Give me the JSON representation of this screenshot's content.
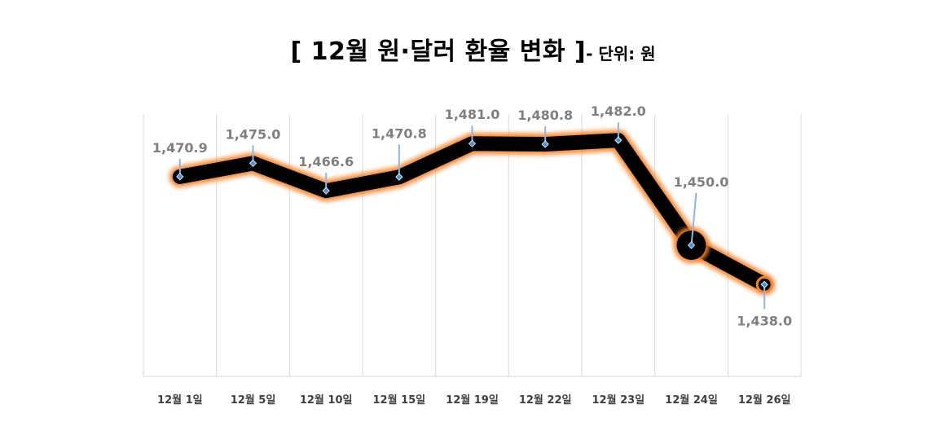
{
  "chart_data": {
    "type": "line",
    "title": "[ 12월 원·달러 환율 변화 ]",
    "unit_label": "- 단위: 원",
    "categories": [
      "12월 1일",
      "12월 5일",
      "12월 10일",
      "12월 15일",
      "12월 19일",
      "12월 22일",
      "12월 23일",
      "12월 24일",
      "12월 26일"
    ],
    "series": [
      {
        "name": "원·달러 환율",
        "values": [
          1470.9,
          1475.0,
          1466.6,
          1470.8,
          1481.0,
          1480.8,
          1482.0,
          1450.0,
          1438.0
        ],
        "labels": [
          "1,470.9",
          "1,475.0",
          "1,466.6",
          "1,470.8",
          "1,481.0",
          "1,480.8",
          "1,482.0",
          "1,450.0",
          "1,438.0"
        ]
      }
    ],
    "xlabel": "",
    "ylabel": "",
    "ylim": [
      1410,
      1490
    ],
    "grid": "vertical",
    "legend": "none",
    "colors": {
      "line": "#000000",
      "glow": "#f4822a",
      "marker": "#4a90d9",
      "leader": "#8fb4e3",
      "grid": "#d9d9d9",
      "label": "#7f7f7f"
    }
  }
}
